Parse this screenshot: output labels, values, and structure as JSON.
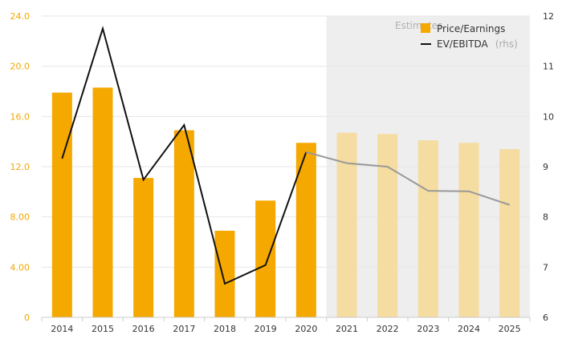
{
  "chart_data": {
    "type": "bar",
    "categories": [
      "2014",
      "2015",
      "2016",
      "2017",
      "2018",
      "2019",
      "2020",
      "2021",
      "2022",
      "2023",
      "2024",
      "2025"
    ],
    "series": [
      {
        "name": "Price/Earnings",
        "kind": "bar",
        "axis": "left",
        "values": [
          17.9,
          18.3,
          11.1,
          14.9,
          6.9,
          9.3,
          13.9,
          14.7,
          14.6,
          14.1,
          13.9,
          13.4
        ]
      },
      {
        "name": "EV/EBITDA",
        "axis_note": "(rhs)",
        "kind": "line",
        "axis": "right",
        "values": [
          9.16,
          11.75,
          8.74,
          9.83,
          6.67,
          7.04,
          9.29,
          9.07,
          9.0,
          8.52,
          8.51,
          8.24
        ]
      }
    ],
    "y_left": {
      "ticks": [
        "0",
        "4.00",
        "8.00",
        "12.0",
        "16.0",
        "20.0",
        "24.0"
      ],
      "range": [
        0,
        24
      ]
    },
    "y_right": {
      "ticks": [
        "6",
        "7",
        "8",
        "9",
        "10",
        "11",
        "12"
      ],
      "range": [
        6,
        12
      ]
    },
    "estimates_label": "Estimates",
    "estimates_start_index": 7,
    "colors": {
      "bar_actual": "#f5a800",
      "bar_estimate": "#f5dca0",
      "line_actual": "#111111",
      "line_estimate": "#999999",
      "estimates_bg": "#eeeeee",
      "left_axis": "#f5a700"
    },
    "legend_position": "top-right",
    "grid": true
  }
}
